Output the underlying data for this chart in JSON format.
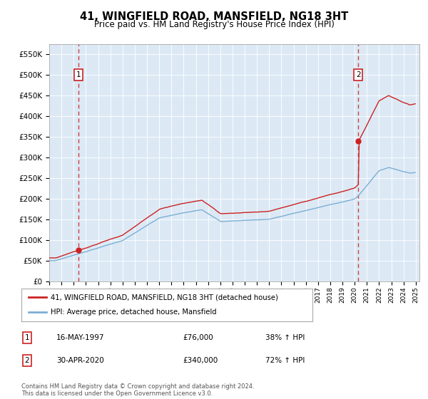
{
  "title": "41, WINGFIELD ROAD, MANSFIELD, NG18 3HT",
  "subtitle": "Price paid vs. HM Land Registry's House Price Index (HPI)",
  "legend_line1": "41, WINGFIELD ROAD, MANSFIELD, NG18 3HT (detached house)",
  "legend_line2": "HPI: Average price, detached house, Mansfield",
  "sale1_date": "16-MAY-1997",
  "sale1_price": 76000,
  "sale1_label": "38% ↑ HPI",
  "sale2_date": "30-APR-2020",
  "sale2_price": 340000,
  "sale2_label": "72% ↑ HPI",
  "footer": "Contains HM Land Registry data © Crown copyright and database right 2024.\nThis data is licensed under the Open Government Licence v3.0.",
  "hpi_color": "#7bafd4",
  "price_color": "#cc2222",
  "plot_bg_color": "#dce9f5",
  "ylim": [
    0,
    575000
  ],
  "yticks": [
    0,
    50000,
    100000,
    150000,
    200000,
    250000,
    300000,
    350000,
    400000,
    450000,
    500000,
    550000
  ],
  "ytick_labels": [
    "£0",
    "£50K",
    "£100K",
    "£150K",
    "£200K",
    "£250K",
    "£300K",
    "£350K",
    "£400K",
    "£450K",
    "£500K",
    "£550K"
  ],
  "sale1_t": 1997.375,
  "sale2_t": 2020.292
}
